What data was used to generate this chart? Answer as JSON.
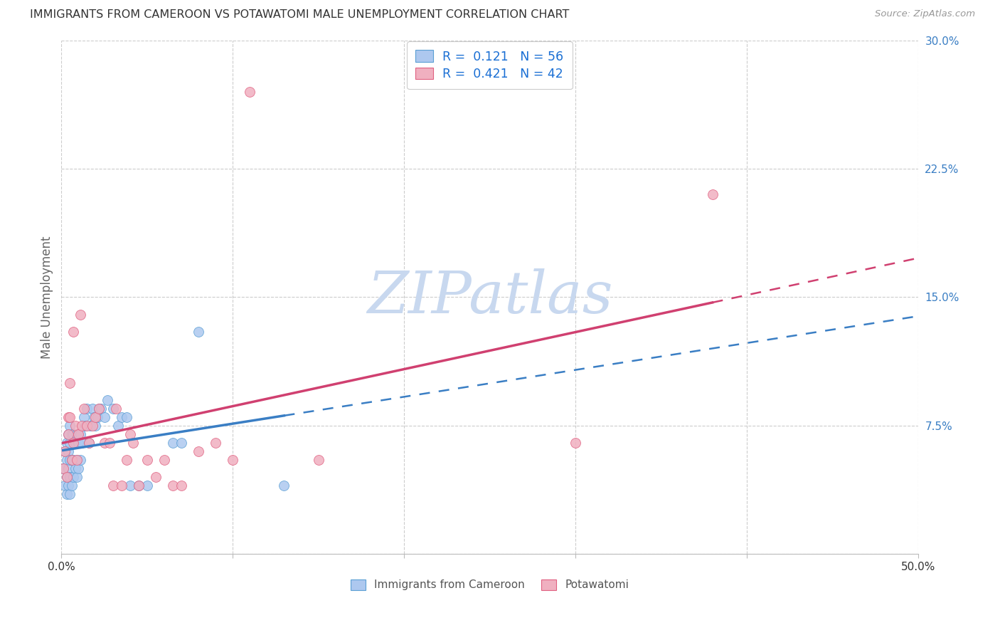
{
  "title": "IMMIGRANTS FROM CAMEROON VS POTAWATOMI MALE UNEMPLOYMENT CORRELATION CHART",
  "source": "Source: ZipAtlas.com",
  "ylabel": "Male Unemployment",
  "yticks": [
    0.0,
    0.075,
    0.15,
    0.225,
    0.3
  ],
  "ytick_labels": [
    "",
    "7.5%",
    "15.0%",
    "22.5%",
    "30.0%"
  ],
  "xtick_positions": [
    0.0,
    0.1,
    0.2,
    0.3,
    0.4,
    0.5
  ],
  "xtick_labels": [
    "0.0%",
    "",
    "",
    "",
    "",
    "50.0%"
  ],
  "xlim": [
    0.0,
    0.5
  ],
  "ylim": [
    0.0,
    0.3
  ],
  "series1_name": "Immigrants from Cameroon",
  "series1_R": "0.121",
  "series1_N": "56",
  "series1_color": "#adc8ef",
  "series1_edge_color": "#5a9fd4",
  "series1_line_color": "#3a7ec4",
  "series2_name": "Potawatomi",
  "series2_R": "0.421",
  "series2_N": "42",
  "series2_color": "#f0b0c0",
  "series2_edge_color": "#e06080",
  "series2_line_color": "#d04070",
  "legend_text_color": "#1a6fd4",
  "watermark": "ZIPatlas",
  "watermark_color": "#c8d8ef",
  "background_color": "#ffffff",
  "grid_color": "#cccccc",
  "title_color": "#333333",
  "ylabel_color": "#666666",
  "ytick_color": "#3a7ec4",
  "xtick_color": "#333333",
  "source_color": "#999999",
  "series1_x": [
    0.001,
    0.002,
    0.002,
    0.003,
    0.003,
    0.003,
    0.003,
    0.004,
    0.004,
    0.004,
    0.004,
    0.005,
    0.005,
    0.005,
    0.005,
    0.005,
    0.006,
    0.006,
    0.006,
    0.007,
    0.007,
    0.007,
    0.008,
    0.008,
    0.009,
    0.009,
    0.009,
    0.01,
    0.01,
    0.011,
    0.011,
    0.012,
    0.013,
    0.014,
    0.015,
    0.016,
    0.017,
    0.018,
    0.019,
    0.02,
    0.021,
    0.022,
    0.023,
    0.025,
    0.027,
    0.03,
    0.033,
    0.035,
    0.038,
    0.04,
    0.045,
    0.05,
    0.065,
    0.07,
    0.08,
    0.13
  ],
  "series1_y": [
    0.05,
    0.04,
    0.06,
    0.035,
    0.045,
    0.055,
    0.065,
    0.04,
    0.05,
    0.06,
    0.07,
    0.035,
    0.045,
    0.055,
    0.065,
    0.075,
    0.04,
    0.055,
    0.07,
    0.045,
    0.055,
    0.07,
    0.05,
    0.065,
    0.045,
    0.055,
    0.07,
    0.05,
    0.065,
    0.055,
    0.07,
    0.065,
    0.08,
    0.075,
    0.085,
    0.065,
    0.075,
    0.085,
    0.08,
    0.075,
    0.08,
    0.085,
    0.085,
    0.08,
    0.09,
    0.085,
    0.075,
    0.08,
    0.08,
    0.04,
    0.04,
    0.04,
    0.065,
    0.065,
    0.13,
    0.04
  ],
  "series2_x": [
    0.001,
    0.002,
    0.003,
    0.004,
    0.004,
    0.005,
    0.005,
    0.006,
    0.007,
    0.007,
    0.008,
    0.009,
    0.01,
    0.011,
    0.012,
    0.013,
    0.015,
    0.016,
    0.018,
    0.02,
    0.022,
    0.025,
    0.028,
    0.03,
    0.032,
    0.035,
    0.038,
    0.04,
    0.042,
    0.045,
    0.05,
    0.055,
    0.06,
    0.065,
    0.07,
    0.08,
    0.09,
    0.1,
    0.11,
    0.15,
    0.3,
    0.38
  ],
  "series2_y": [
    0.05,
    0.06,
    0.045,
    0.07,
    0.08,
    0.08,
    0.1,
    0.055,
    0.065,
    0.13,
    0.075,
    0.055,
    0.07,
    0.14,
    0.075,
    0.085,
    0.075,
    0.065,
    0.075,
    0.08,
    0.085,
    0.065,
    0.065,
    0.04,
    0.085,
    0.04,
    0.055,
    0.07,
    0.065,
    0.04,
    0.055,
    0.045,
    0.055,
    0.04,
    0.04,
    0.06,
    0.065,
    0.055,
    0.27,
    0.055,
    0.065,
    0.21
  ],
  "trend1_x_solid_start": 0.001,
  "trend1_x_solid_end": 0.13,
  "trend1_x_dash_end": 0.5,
  "trend2_x_solid_start": 0.001,
  "trend2_x_solid_end": 0.38,
  "trend2_x_dash_end": 0.5
}
